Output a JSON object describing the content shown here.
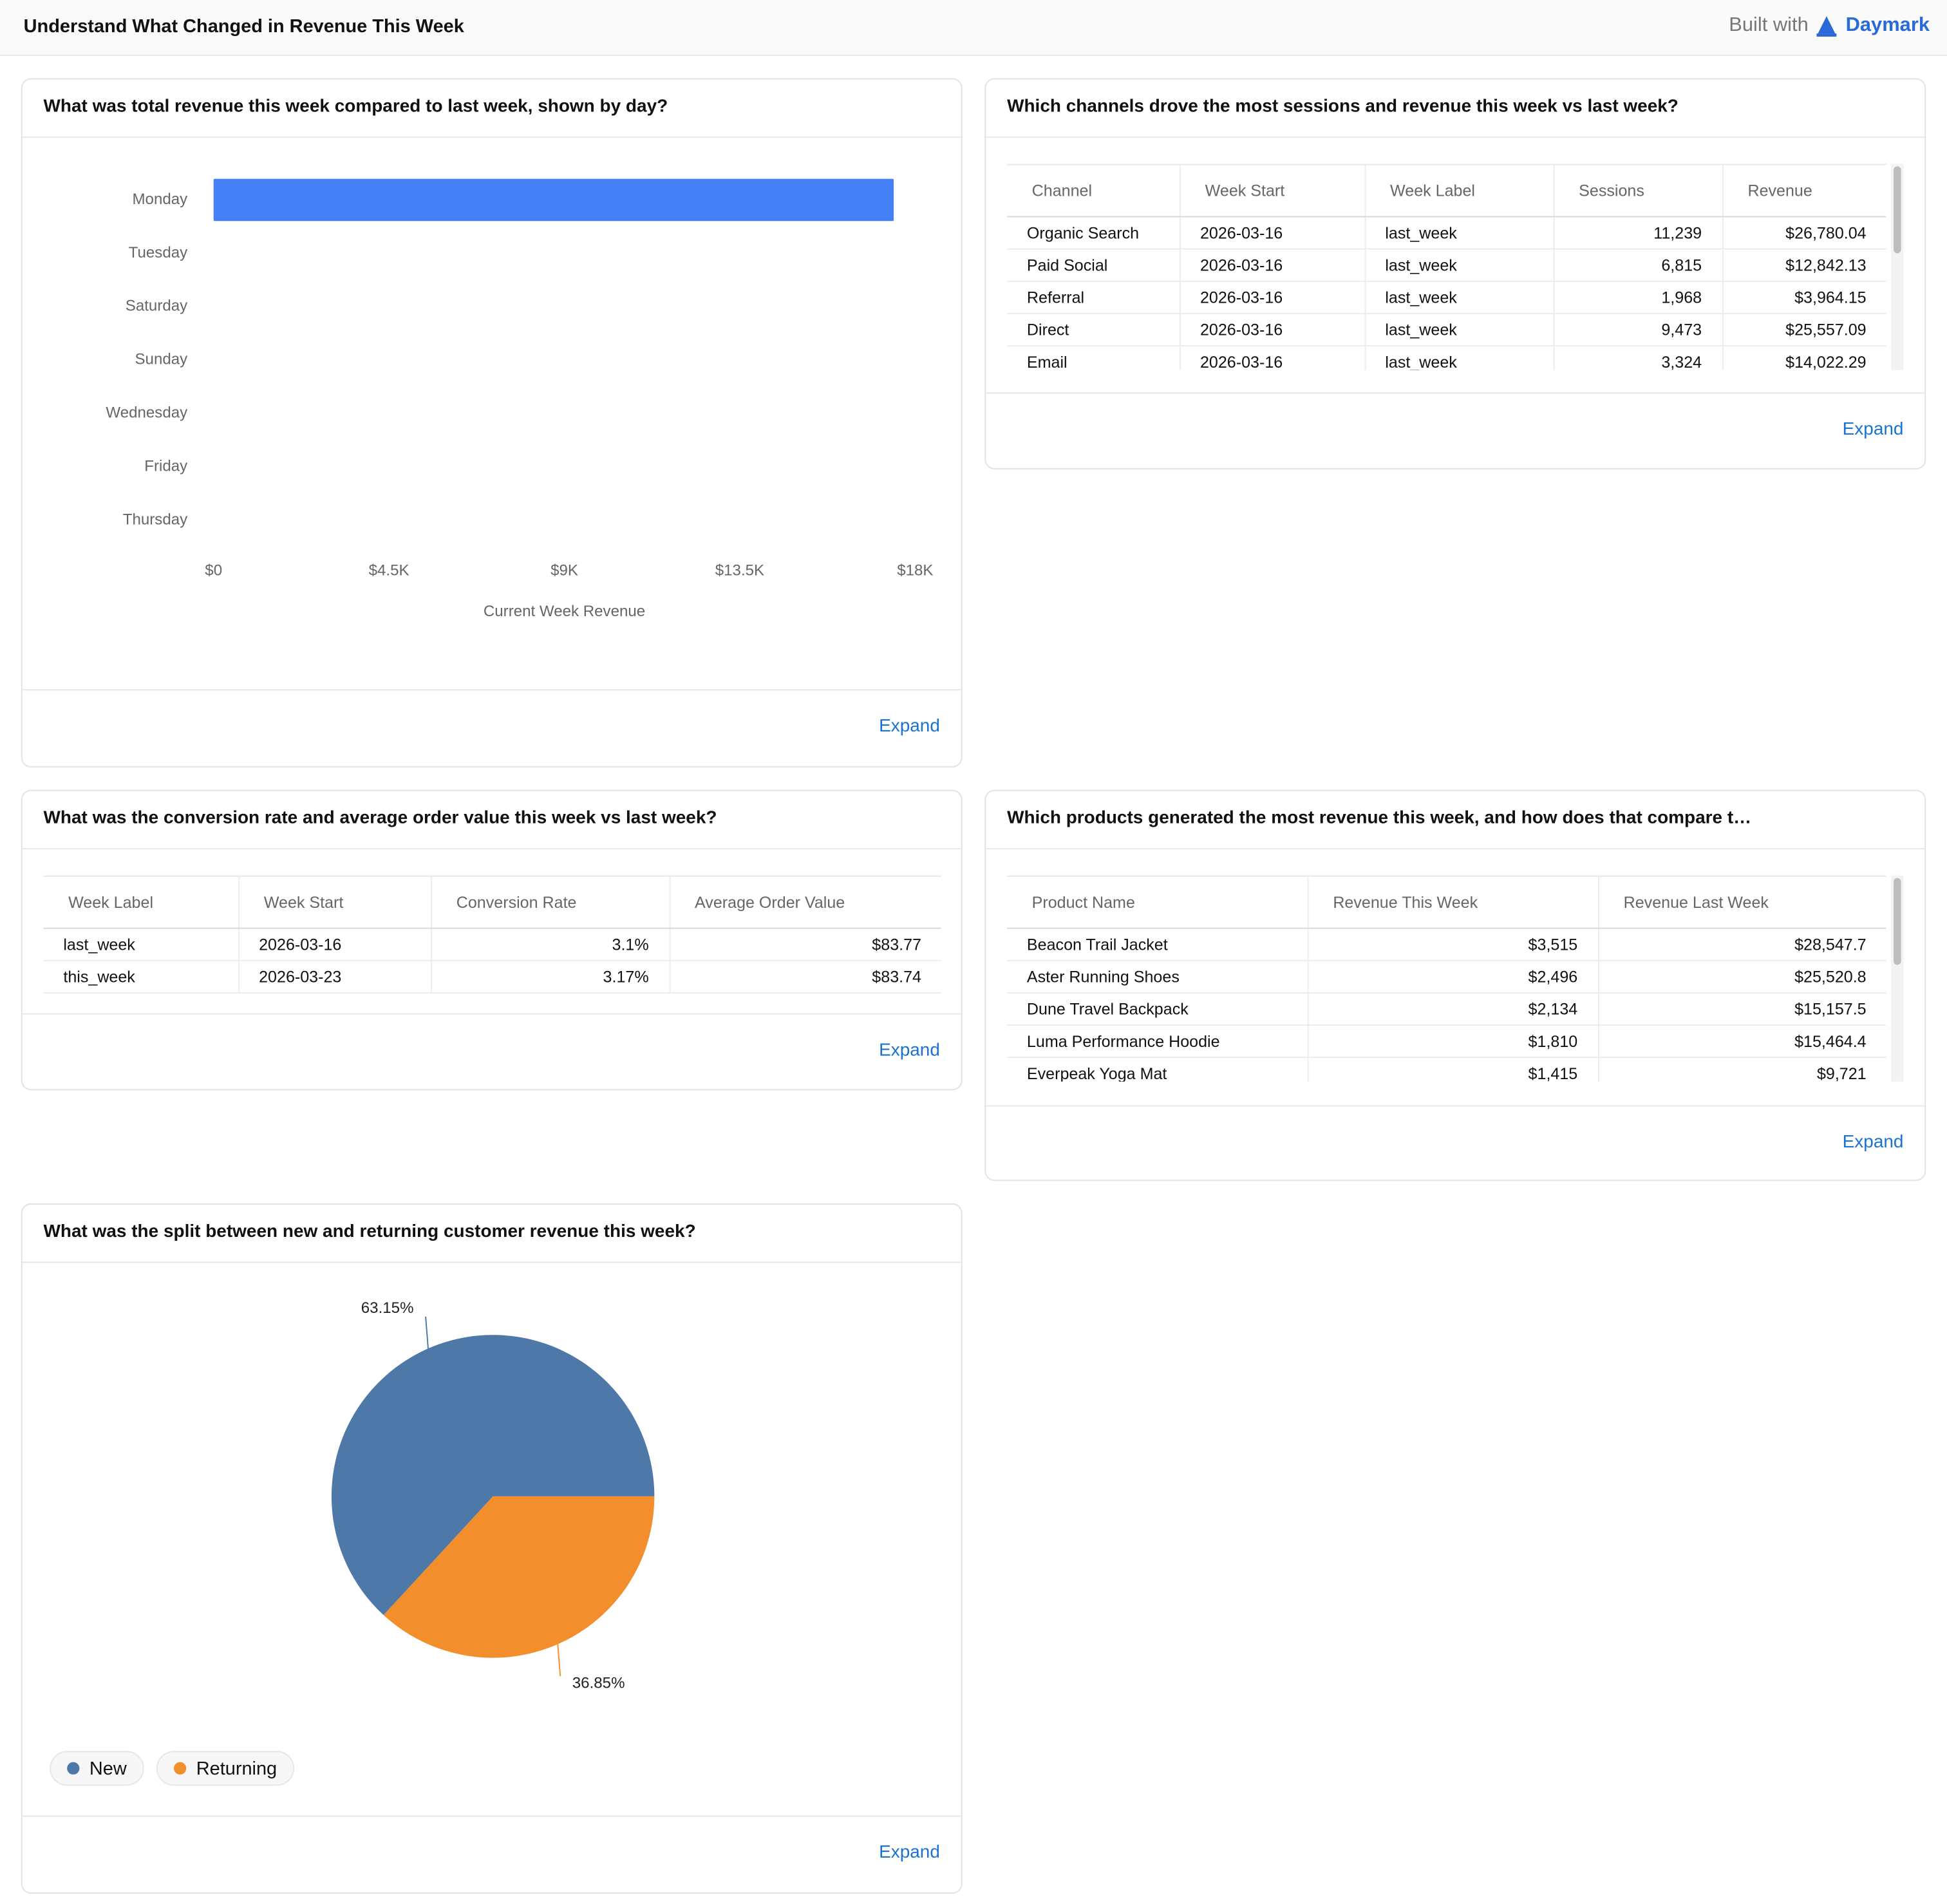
{
  "header": {
    "title": "Understand What Changed in Revenue This Week",
    "built_with": "Built with",
    "brand": "Daymark"
  },
  "chart_data": [
    {
      "type": "bar",
      "orientation": "horizontal",
      "title": "What was total revenue this week compared to last week, shown by day?",
      "categories": [
        "Monday",
        "Tuesday",
        "Saturday",
        "Sunday",
        "Wednesday",
        "Friday",
        "Thursday"
      ],
      "values": [
        17450,
        0,
        0,
        0,
        0,
        0,
        0
      ],
      "color": "#4580f7",
      "xlim": [
        0,
        18000
      ],
      "xticks": [
        {
          "value": 0,
          "label": "$0"
        },
        {
          "value": 4500,
          "label": "$4.5K"
        },
        {
          "value": 9000,
          "label": "$9K"
        },
        {
          "value": 13500,
          "label": "$13.5K"
        },
        {
          "value": 18000,
          "label": "$18K"
        }
      ],
      "x_label": "Current Week Revenue",
      "grid": false,
      "action": "Expand"
    },
    {
      "type": "pie",
      "title": "What was the split between new and returning customer revenue this week?",
      "categories": [
        "New",
        "Returning"
      ],
      "values": [
        63.15,
        36.85
      ],
      "value_labels": [
        "63.15%",
        "36.85%"
      ],
      "colors": [
        "#4e78a8",
        "#f28e2c"
      ],
      "legend": "bottom-left",
      "action": "Expand"
    }
  ],
  "tables": [
    {
      "title": "Which channels drove the most sessions and revenue this week vs last week?",
      "columns": [
        "Channel",
        "Week Start",
        "Week Label",
        "Sessions",
        "Revenue"
      ],
      "rows": [
        [
          "Organic Search",
          "2026-03-16",
          "last_week",
          "11,239",
          "$26,780.04"
        ],
        [
          "Paid Social",
          "2026-03-16",
          "last_week",
          "6,815",
          "$12,842.13"
        ],
        [
          "Referral",
          "2026-03-16",
          "last_week",
          "1,968",
          "$3,964.15"
        ],
        [
          "Direct",
          "2026-03-16",
          "last_week",
          "9,473",
          "$25,557.09"
        ],
        [
          "Email",
          "2026-03-16",
          "last_week",
          "3,324",
          "$14,022.29"
        ]
      ],
      "action": "Expand"
    },
    {
      "title": "What was the conversion rate and average order value this week vs last week?",
      "columns": [
        "Week Label",
        "Week Start",
        "Conversion Rate",
        "Average Order Value"
      ],
      "rows": [
        [
          "last_week",
          "2026-03-16",
          "3.1%",
          "$83.77"
        ],
        [
          "this_week",
          "2026-03-23",
          "3.17%",
          "$83.74"
        ]
      ],
      "action": "Expand"
    },
    {
      "title": "Which products generated the most revenue this week, and how does that compare t…",
      "columns": [
        "Product Name",
        "Revenue This Week",
        "Revenue Last Week"
      ],
      "rows": [
        [
          "Beacon Trail Jacket",
          "$3,515",
          "$28,547.7"
        ],
        [
          "Aster Running Shoes",
          "$2,496",
          "$25,520.8"
        ],
        [
          "Dune Travel Backpack",
          "$2,134",
          "$15,157.5"
        ],
        [
          "Luma Performance Hoodie",
          "$1,810",
          "$15,464.4"
        ],
        [
          "Everpeak Yoga Mat",
          "$1,415",
          "$9,721"
        ]
      ],
      "action": "Expand"
    }
  ]
}
